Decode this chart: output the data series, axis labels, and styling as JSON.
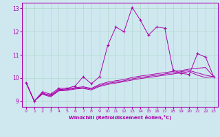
{
  "xlabel": "Windchill (Refroidissement éolien,°C)",
  "bg_color": "#cfe8f0",
  "grid_color": "#b0d8cc",
  "line_color": "#aa00aa",
  "xlim": [
    -0.5,
    23.5
  ],
  "ylim": [
    8.75,
    13.25
  ],
  "yticks": [
    9,
    10,
    11,
    12,
    13
  ],
  "xticks": [
    0,
    1,
    2,
    3,
    4,
    5,
    6,
    7,
    8,
    9,
    10,
    11,
    12,
    13,
    14,
    15,
    16,
    17,
    18,
    19,
    20,
    21,
    22,
    23
  ],
  "series0": [
    9.8,
    9.0,
    9.4,
    9.3,
    9.55,
    9.55,
    9.65,
    10.05,
    9.75,
    10.05,
    11.4,
    12.2,
    12.0,
    13.05,
    12.5,
    11.85,
    12.2,
    12.15,
    10.35,
    10.2,
    10.15,
    11.05,
    10.9,
    10.05
  ],
  "series1": [
    9.8,
    9.0,
    9.35,
    9.25,
    9.5,
    9.52,
    9.58,
    9.62,
    9.55,
    9.72,
    9.82,
    9.88,
    9.93,
    10.02,
    10.08,
    10.13,
    10.18,
    10.23,
    10.28,
    10.32,
    10.38,
    10.42,
    10.45,
    10.05
  ],
  "series2": [
    9.8,
    9.0,
    9.32,
    9.22,
    9.47,
    9.49,
    9.55,
    9.58,
    9.52,
    9.67,
    9.77,
    9.82,
    9.88,
    9.96,
    10.02,
    10.07,
    10.12,
    10.17,
    10.22,
    10.27,
    10.32,
    10.22,
    10.12,
    10.05
  ],
  "series3": [
    9.8,
    9.0,
    9.3,
    9.18,
    9.44,
    9.46,
    9.52,
    9.55,
    9.48,
    9.63,
    9.72,
    9.78,
    9.84,
    9.91,
    9.97,
    10.02,
    10.07,
    10.12,
    10.17,
    10.22,
    10.27,
    10.12,
    10.02,
    10.05
  ]
}
